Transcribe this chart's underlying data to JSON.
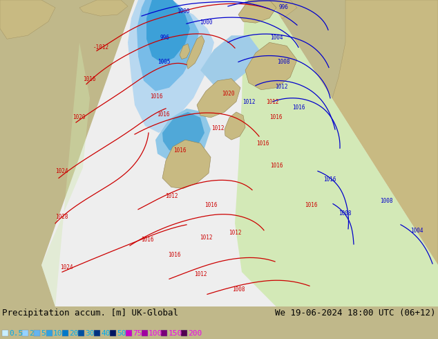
{
  "title_left": "Precipitation accum. [m] UK-Global",
  "title_right": "We 19-06-2024 18:00 UTC (06+12)",
  "legend_labels": [
    "0.5",
    "2",
    "5",
    "10",
    "20",
    "30",
    "40",
    "50",
    "75",
    "100",
    "150",
    "200"
  ],
  "legend_colors": [
    "#c8eeff",
    "#96d2ff",
    "#64b4f0",
    "#32a0e0",
    "#0078c8",
    "#0050a0",
    "#003280",
    "#001460",
    "#c800c8",
    "#a000a0",
    "#780078",
    "#500050"
  ],
  "legend_text_colors": [
    "#00aaee",
    "#00aaee",
    "#00aaee",
    "#00aaee",
    "#00aaee",
    "#00aaee",
    "#00aaee",
    "#00aaee",
    "#ee00ee",
    "#ee00ee",
    "#ee00ee",
    "#ee00ee"
  ],
  "bg_color": "#c0b88a",
  "ocean_color": "#b0b8c0",
  "domain_color": "#f0f0f0",
  "domain_green_color": "#c8e8a0",
  "precip_light1": "#c0e0f8",
  "precip_light2": "#96cef0",
  "precip_medium": "#64b4e8",
  "precip_dark": "#3296d8",
  "bottom_bg": "#c8c8c8",
  "font_size": 9
}
